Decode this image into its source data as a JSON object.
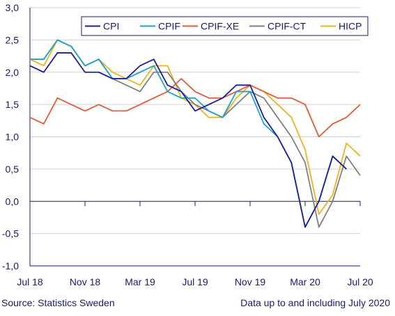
{
  "chart_data": {
    "type": "line",
    "categories": [
      "Jul 18",
      "Aug 18",
      "Sep 18",
      "Oct 18",
      "Nov 18",
      "Dec 18",
      "Jan 19",
      "Feb 19",
      "Mar 19",
      "Apr 19",
      "May 19",
      "Jun 19",
      "Jul 19",
      "Aug 19",
      "Sep 19",
      "Oct 19",
      "Nov 19",
      "Dec 19",
      "Jan 20",
      "Feb 20",
      "Mar 20",
      "Apr 20",
      "May 20",
      "Jun 20",
      "Jul 20"
    ],
    "x_tick_labels": [
      "Jul 18",
      "Nov 18",
      "Mar 19",
      "Jul 19",
      "Nov 19",
      "Mar 20",
      "Jul 20"
    ],
    "x_tick_indices": [
      0,
      4,
      8,
      12,
      16,
      20,
      24
    ],
    "y_ticks": [
      "-1,0",
      "-0,5",
      "0,0",
      "0,5",
      "1,0",
      "1,5",
      "2,0",
      "2,5",
      "3,0"
    ],
    "ylim": [
      -1.0,
      3.0
    ],
    "grid": "horizontal",
    "legend_position": "top",
    "series": [
      {
        "name": "CPI",
        "color": "#1c1c9e",
        "values": [
          2.1,
          2.0,
          2.3,
          2.3,
          2.0,
          2.0,
          1.9,
          1.9,
          2.1,
          2.2,
          1.8,
          1.7,
          1.4,
          1.5,
          1.6,
          1.8,
          1.8,
          1.3,
          1.0,
          0.6,
          -0.4,
          0.0,
          0.7,
          0.5,
          null
        ]
      },
      {
        "name": "CPIF",
        "color": "#1fa3c9",
        "values": [
          2.2,
          2.2,
          2.5,
          2.4,
          2.1,
          2.2,
          1.9,
          1.9,
          2.0,
          2.1,
          1.7,
          1.6,
          1.6,
          1.4,
          1.3,
          1.7,
          1.7,
          1.2,
          1.0,
          0.6,
          -0.4,
          0.0,
          0.7,
          0.5,
          null
        ]
      },
      {
        "name": "CPIF-XE",
        "color": "#e55a3c",
        "values": [
          1.3,
          1.2,
          1.6,
          1.5,
          1.4,
          1.5,
          1.4,
          1.4,
          1.5,
          1.6,
          1.7,
          1.9,
          1.7,
          1.6,
          1.6,
          1.7,
          1.8,
          1.7,
          1.6,
          1.6,
          1.5,
          1.0,
          1.2,
          1.3,
          1.5
        ]
      },
      {
        "name": "CPIF-CT",
        "color": "#808080",
        "values": [
          2.2,
          2.2,
          2.5,
          2.4,
          2.1,
          2.2,
          1.9,
          1.8,
          1.7,
          2.0,
          2.0,
          1.7,
          1.5,
          1.4,
          1.3,
          1.5,
          1.7,
          1.6,
          1.3,
          1.0,
          0.6,
          -0.4,
          0.0,
          0.7,
          0.4
        ]
      },
      {
        "name": "HICP",
        "color": "#f0b21d",
        "values": [
          2.2,
          2.1,
          2.5,
          2.4,
          2.1,
          2.2,
          2.0,
          1.9,
          1.8,
          2.1,
          2.1,
          1.6,
          1.5,
          1.3,
          1.3,
          1.6,
          1.8,
          1.7,
          1.5,
          1.3,
          0.8,
          -0.2,
          0.1,
          0.9,
          0.7
        ]
      }
    ]
  },
  "footer": {
    "source": "Source: Statistics Sweden",
    "note": "Data up to and including July 2020"
  }
}
